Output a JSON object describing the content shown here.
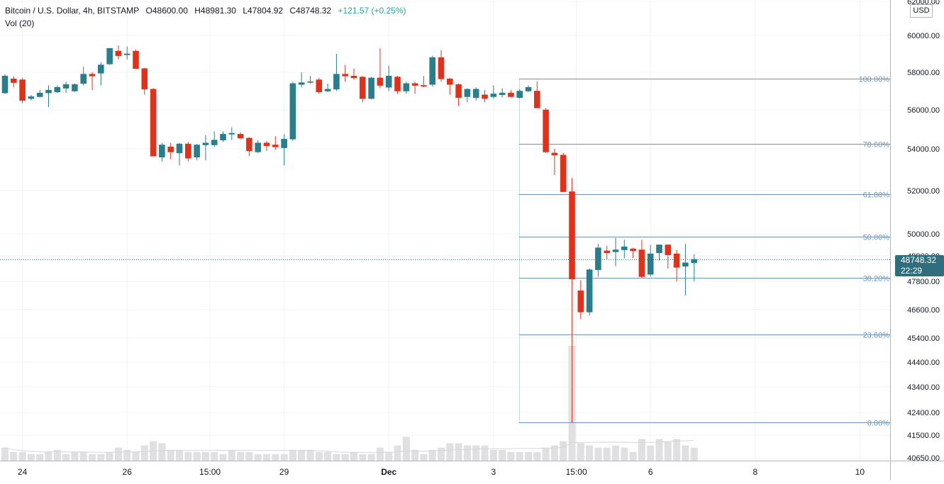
{
  "legend": {
    "symbol": "Bitcoin / U.S. Dollar, 4h, BITSTAMP",
    "open": "O48600.00",
    "high": "H48981.30",
    "low": "L47804.92",
    "close": "C48748.32",
    "change": "+121.57 (+0.25%)",
    "volume_label": "Vol (20)"
  },
  "currency": "USD",
  "last_price": {
    "value": "48748.32",
    "countdown": "22:29"
  },
  "colors": {
    "up": "#2a7d8c",
    "down": "#e0321b",
    "volume": "#e0e0e0",
    "fib": "#6d94b8",
    "axis_text": "#131722",
    "last_price_bg": "#2f6f7d",
    "price_line": "#2f6f7d"
  },
  "chart_data": {
    "type": "candlestick",
    "title": "Bitcoin / U.S. Dollar, 4h, BITSTAMP",
    "timeframe": "4h",
    "price_axis_labels": [
      "62000.00",
      "60000.00",
      "58000.00",
      "56000.00",
      "54000.00",
      "52000.00",
      "50000.00",
      "48900.00",
      "47800.00",
      "46600.00",
      "45400.00",
      "44400.00",
      "43400.00",
      "42400.00",
      "41500.00",
      "40650.00"
    ],
    "x_ticks": [
      {
        "label": "24",
        "bar": 2
      },
      {
        "label": "26",
        "bar": 14
      },
      {
        "label": "15:00",
        "bar": 23.5
      },
      {
        "label": "29",
        "bar": 32
      },
      {
        "label": "Dec",
        "bar": 44
      },
      {
        "label": "3",
        "bar": 56
      },
      {
        "label": "15:00",
        "bar": 65.5
      },
      {
        "label": "6",
        "bar": 74
      },
      {
        "label": "8",
        "bar": 86
      },
      {
        "label": "10",
        "bar": 98
      }
    ],
    "candles": [
      {
        "o": 56900,
        "h": 57900,
        "l": 56850,
        "c": 57800
      },
      {
        "o": 57650,
        "h": 57800,
        "l": 57200,
        "c": 57450
      },
      {
        "o": 57600,
        "h": 57700,
        "l": 56350,
        "c": 56500
      },
      {
        "o": 56600,
        "h": 56800,
        "l": 56500,
        "c": 56700
      },
      {
        "o": 56700,
        "h": 57050,
        "l": 56650,
        "c": 56900
      },
      {
        "o": 56900,
        "h": 57300,
        "l": 56150,
        "c": 57050
      },
      {
        "o": 56950,
        "h": 57300,
        "l": 56900,
        "c": 57200
      },
      {
        "o": 57150,
        "h": 57500,
        "l": 56900,
        "c": 57350
      },
      {
        "o": 57000,
        "h": 57400,
        "l": 56950,
        "c": 57350
      },
      {
        "o": 57400,
        "h": 58300,
        "l": 57300,
        "c": 57900
      },
      {
        "o": 57900,
        "h": 58000,
        "l": 57050,
        "c": 57800
      },
      {
        "o": 57950,
        "h": 58550,
        "l": 57300,
        "c": 58400
      },
      {
        "o": 58450,
        "h": 59300,
        "l": 58400,
        "c": 59300
      },
      {
        "o": 59150,
        "h": 59450,
        "l": 58700,
        "c": 58900
      },
      {
        "o": 58950,
        "h": 59400,
        "l": 58700,
        "c": 59000
      },
      {
        "o": 59150,
        "h": 59250,
        "l": 58200,
        "c": 58200
      },
      {
        "o": 58200,
        "h": 58250,
        "l": 56800,
        "c": 57100
      },
      {
        "o": 57100,
        "h": 57150,
        "l": 53650,
        "c": 53650
      },
      {
        "o": 53600,
        "h": 54300,
        "l": 53400,
        "c": 54200
      },
      {
        "o": 54100,
        "h": 54300,
        "l": 53500,
        "c": 53850
      },
      {
        "o": 53800,
        "h": 54300,
        "l": 53200,
        "c": 54250
      },
      {
        "o": 54250,
        "h": 54350,
        "l": 53400,
        "c": 53550
      },
      {
        "o": 53600,
        "h": 54250,
        "l": 53450,
        "c": 54200
      },
      {
        "o": 54200,
        "h": 54700,
        "l": 53450,
        "c": 54300
      },
      {
        "o": 54200,
        "h": 54900,
        "l": 54100,
        "c": 54450
      },
      {
        "o": 54450,
        "h": 54900,
        "l": 54350,
        "c": 54750
      },
      {
        "o": 54750,
        "h": 55100,
        "l": 54450,
        "c": 54800
      },
      {
        "o": 54750,
        "h": 54850,
        "l": 54500,
        "c": 54550
      },
      {
        "o": 54550,
        "h": 54600,
        "l": 53650,
        "c": 53900
      },
      {
        "o": 53850,
        "h": 54450,
        "l": 53800,
        "c": 54300
      },
      {
        "o": 54300,
        "h": 54400,
        "l": 53900,
        "c": 54150
      },
      {
        "o": 54200,
        "h": 54650,
        "l": 53950,
        "c": 54100
      },
      {
        "o": 54050,
        "h": 54750,
        "l": 53200,
        "c": 54500
      },
      {
        "o": 54500,
        "h": 57500,
        "l": 54400,
        "c": 57400
      },
      {
        "o": 57350,
        "h": 58000,
        "l": 57200,
        "c": 57450
      },
      {
        "o": 57500,
        "h": 57800,
        "l": 57400,
        "c": 57500
      },
      {
        "o": 57600,
        "h": 57700,
        "l": 56850,
        "c": 56950
      },
      {
        "o": 57000,
        "h": 57400,
        "l": 56950,
        "c": 57100
      },
      {
        "o": 57100,
        "h": 59000,
        "l": 57000,
        "c": 57900
      },
      {
        "o": 57900,
        "h": 58400,
        "l": 57500,
        "c": 57800
      },
      {
        "o": 57800,
        "h": 58200,
        "l": 57600,
        "c": 57700
      },
      {
        "o": 57750,
        "h": 57800,
        "l": 56400,
        "c": 56600
      },
      {
        "o": 56600,
        "h": 57750,
        "l": 56550,
        "c": 57700
      },
      {
        "o": 57700,
        "h": 59300,
        "l": 57150,
        "c": 57300
      },
      {
        "o": 57200,
        "h": 58350,
        "l": 57000,
        "c": 57800
      },
      {
        "o": 57750,
        "h": 57800,
        "l": 56850,
        "c": 57000
      },
      {
        "o": 57000,
        "h": 57500,
        "l": 56850,
        "c": 57400
      },
      {
        "o": 57400,
        "h": 57500,
        "l": 56850,
        "c": 57300
      },
      {
        "o": 57300,
        "h": 57800,
        "l": 57200,
        "c": 57250
      },
      {
        "o": 57350,
        "h": 58900,
        "l": 57250,
        "c": 58800
      },
      {
        "o": 58800,
        "h": 59200,
        "l": 57500,
        "c": 57650
      },
      {
        "o": 57650,
        "h": 57700,
        "l": 56800,
        "c": 57350
      },
      {
        "o": 57350,
        "h": 57400,
        "l": 56200,
        "c": 56650
      },
      {
        "o": 56700,
        "h": 57150,
        "l": 56400,
        "c": 57100
      },
      {
        "o": 56650,
        "h": 57200,
        "l": 56500,
        "c": 57100
      },
      {
        "o": 56800,
        "h": 57050,
        "l": 56400,
        "c": 56600
      },
      {
        "o": 56700,
        "h": 57300,
        "l": 56600,
        "c": 56850
      },
      {
        "o": 56800,
        "h": 57150,
        "l": 56650,
        "c": 56900
      },
      {
        "o": 56900,
        "h": 57050,
        "l": 56650,
        "c": 56700
      },
      {
        "o": 56650,
        "h": 57100,
        "l": 56600,
        "c": 57000
      },
      {
        "o": 57000,
        "h": 57300,
        "l": 56950,
        "c": 57200
      },
      {
        "o": 57000,
        "h": 57500,
        "l": 56100,
        "c": 56100
      },
      {
        "o": 56000,
        "h": 56100,
        "l": 53800,
        "c": 53850
      },
      {
        "o": 53800,
        "h": 54000,
        "l": 52750,
        "c": 53700
      },
      {
        "o": 53700,
        "h": 53800,
        "l": 51950,
        "c": 51950
      },
      {
        "o": 51950,
        "h": 52600,
        "l": 42000,
        "c": 47900
      },
      {
        "o": 47400,
        "h": 47850,
        "l": 46200,
        "c": 46500
      },
      {
        "o": 46500,
        "h": 48350,
        "l": 46350,
        "c": 48300
      },
      {
        "o": 48300,
        "h": 49500,
        "l": 48000,
        "c": 49300
      },
      {
        "o": 49150,
        "h": 49400,
        "l": 48750,
        "c": 49050
      },
      {
        "o": 49100,
        "h": 49800,
        "l": 48450,
        "c": 49200
      },
      {
        "o": 49200,
        "h": 49700,
        "l": 48800,
        "c": 49350
      },
      {
        "o": 49250,
        "h": 49300,
        "l": 48800,
        "c": 49150
      },
      {
        "o": 49200,
        "h": 49700,
        "l": 47950,
        "c": 48000
      },
      {
        "o": 48100,
        "h": 49450,
        "l": 48000,
        "c": 49000
      },
      {
        "o": 49050,
        "h": 49400,
        "l": 48700,
        "c": 49450
      },
      {
        "o": 49450,
        "h": 49450,
        "l": 48350,
        "c": 48950
      },
      {
        "o": 49000,
        "h": 49200,
        "l": 47800,
        "c": 48400
      },
      {
        "o": 48450,
        "h": 49500,
        "l": 47200,
        "c": 48600
      },
      {
        "o": 48600,
        "h": 48981.3,
        "l": 47804.92,
        "c": 48748.32
      }
    ],
    "volume": [
      6,
      4,
      4,
      3,
      3,
      4,
      5,
      3,
      4,
      4,
      3,
      3,
      4,
      6,
      5,
      4,
      7,
      9,
      8,
      5,
      5,
      4,
      4,
      4,
      4,
      3,
      5,
      4,
      4,
      3,
      3,
      3,
      3,
      5,
      5,
      5,
      4,
      4,
      3,
      3,
      4,
      3,
      3,
      6,
      4,
      7,
      11,
      5,
      3,
      5,
      6,
      8,
      8,
      7,
      7,
      7,
      5,
      5,
      4,
      4,
      4,
      4,
      6,
      7,
      9,
      53,
      8,
      7,
      6,
      6,
      7,
      6,
      4,
      10,
      7,
      10,
      9,
      10,
      7,
      6
    ],
    "fib_levels": [
      {
        "label": "100.00%",
        "price": 57650
      },
      {
        "label": "78.60%",
        "price": 54250
      },
      {
        "label": "61.80%",
        "price": 51850
      },
      {
        "label": "50.00%",
        "price": 49850
      },
      {
        "label": "38.20%",
        "price": 47950
      },
      {
        "label": "23.60%",
        "price": 45550
      },
      {
        "label": "0.00%",
        "price": 42000
      }
    ]
  }
}
